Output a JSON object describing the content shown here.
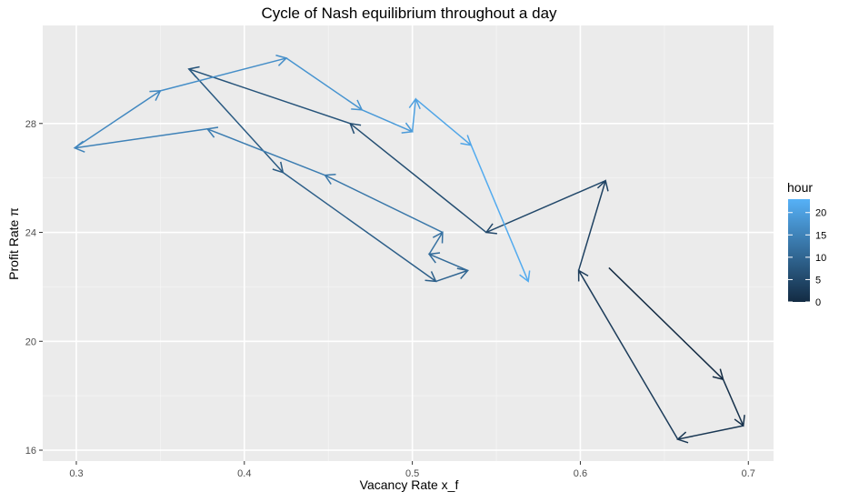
{
  "chart_data": {
    "type": "line",
    "title": "Cycle of Nash equilibrium throughout a day",
    "xlabel": "Vacancy Rate x_f",
    "ylabel": "Profit Rate π",
    "xlim": [
      0.28,
      0.715
    ],
    "ylim": [
      15.6,
      31.6
    ],
    "x_ticks": [
      0.3,
      0.4,
      0.5,
      0.6,
      0.7
    ],
    "x_tick_labels": [
      "0.3",
      "0.4",
      "0.5",
      "0.6",
      "0.7"
    ],
    "y_ticks": [
      16,
      20,
      24,
      28
    ],
    "y_tick_labels": [
      "16",
      "20",
      "24",
      "28"
    ],
    "grid": true,
    "panel_background": "#ebebeb",
    "arrows": true,
    "color_legend": {
      "title": "hour",
      "min": 0,
      "max": 23,
      "ticks": [
        0,
        5,
        10,
        15,
        20
      ],
      "tick_labels": [
        "0",
        "5",
        "10",
        "15",
        "20"
      ],
      "low_color": "#132b43",
      "high_color": "#56b1f7",
      "placement": "right"
    },
    "series": [
      {
        "points": [
          {
            "hour": 0,
            "x": 0.617,
            "y": 22.7
          },
          {
            "hour": 1,
            "x": 0.685,
            "y": 18.6
          },
          {
            "hour": 2,
            "x": 0.697,
            "y": 16.9
          },
          {
            "hour": 3,
            "x": 0.658,
            "y": 16.4
          },
          {
            "hour": 4,
            "x": 0.599,
            "y": 22.6
          },
          {
            "hour": 5,
            "x": 0.615,
            "y": 25.9
          },
          {
            "hour": 6,
            "x": 0.544,
            "y": 24.0
          },
          {
            "hour": 7,
            "x": 0.463,
            "y": 28.0
          },
          {
            "hour": 8,
            "x": 0.367,
            "y": 30.0
          },
          {
            "hour": 9,
            "x": 0.423,
            "y": 26.2
          },
          {
            "hour": 10,
            "x": 0.514,
            "y": 22.2
          },
          {
            "hour": 11,
            "x": 0.533,
            "y": 22.6
          },
          {
            "hour": 12,
            "x": 0.51,
            "y": 23.2
          },
          {
            "hour": 13,
            "x": 0.518,
            "y": 24.0
          },
          {
            "hour": 14,
            "x": 0.448,
            "y": 26.1
          },
          {
            "hour": 15,
            "x": 0.378,
            "y": 27.8
          },
          {
            "hour": 16,
            "x": 0.299,
            "y": 27.1
          },
          {
            "hour": 17,
            "x": 0.35,
            "y": 29.2
          },
          {
            "hour": 18,
            "x": 0.425,
            "y": 30.4
          },
          {
            "hour": 19,
            "x": 0.47,
            "y": 28.5
          },
          {
            "hour": 20,
            "x": 0.5,
            "y": 27.7
          },
          {
            "hour": 21,
            "x": 0.502,
            "y": 28.9
          },
          {
            "hour": 22,
            "x": 0.535,
            "y": 27.2
          },
          {
            "hour": 23,
            "x": 0.569,
            "y": 22.2
          }
        ]
      }
    ]
  }
}
